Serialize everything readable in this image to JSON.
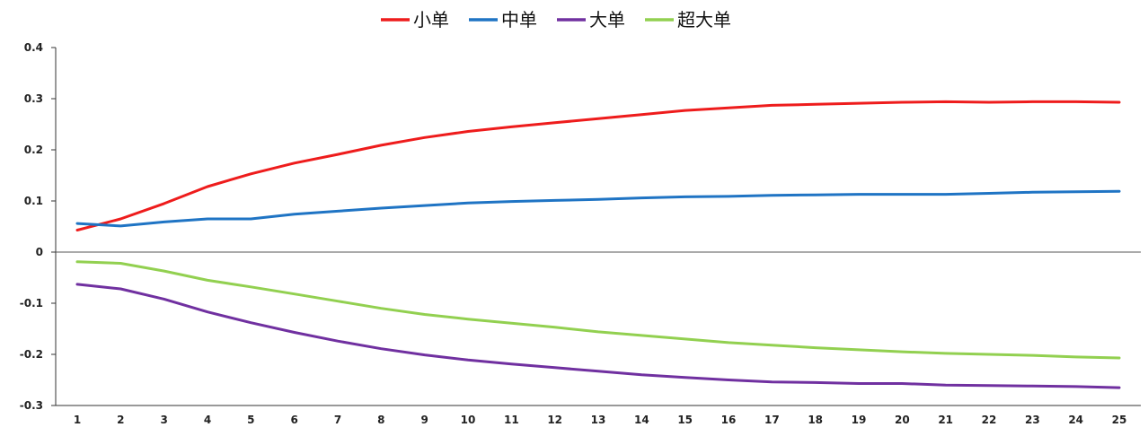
{
  "chart_data": {
    "type": "line",
    "x": [
      1,
      2,
      3,
      4,
      5,
      6,
      7,
      8,
      9,
      10,
      11,
      12,
      13,
      14,
      15,
      16,
      17,
      18,
      19,
      20,
      21,
      22,
      23,
      24,
      25
    ],
    "ylim": [
      -0.3,
      0.4
    ],
    "y_ticks": [
      0.4,
      0.3,
      0.2,
      0.1,
      0,
      -0.1,
      -0.2,
      -0.3
    ],
    "y_tick_labels": [
      "0.4",
      "0.3",
      "0.2",
      "0.1",
      "0",
      "-0.1",
      "-0.2",
      "-0.3"
    ],
    "legend_position": "top-center",
    "grid": false,
    "series": [
      {
        "name": "小单",
        "color": "#ee1c1c",
        "values": [
          0.043,
          0.065,
          0.095,
          0.128,
          0.153,
          0.174,
          0.191,
          0.209,
          0.224,
          0.236,
          0.245,
          0.253,
          0.261,
          0.269,
          0.277,
          0.282,
          0.287,
          0.289,
          0.291,
          0.293,
          0.294,
          0.293,
          0.294,
          0.294,
          0.293
        ]
      },
      {
        "name": "中单",
        "color": "#1f74c4",
        "values": [
          0.056,
          0.051,
          0.059,
          0.065,
          0.065,
          0.074,
          0.08,
          0.086,
          0.091,
          0.096,
          0.099,
          0.101,
          0.103,
          0.106,
          0.108,
          0.109,
          0.111,
          0.112,
          0.113,
          0.113,
          0.113,
          0.115,
          0.117,
          0.118,
          0.119
        ]
      },
      {
        "name": "大单",
        "color": "#7030a0",
        "values": [
          -0.063,
          -0.072,
          -0.092,
          -0.117,
          -0.138,
          -0.157,
          -0.174,
          -0.189,
          -0.201,
          -0.211,
          -0.219,
          -0.226,
          -0.233,
          -0.24,
          -0.245,
          -0.25,
          -0.254,
          -0.255,
          -0.257,
          -0.257,
          -0.26,
          -0.261,
          -0.262,
          -0.263,
          -0.265
        ]
      },
      {
        "name": "超大单",
        "color": "#92d050",
        "values": [
          -0.019,
          -0.022,
          -0.037,
          -0.055,
          -0.068,
          -0.082,
          -0.096,
          -0.11,
          -0.122,
          -0.131,
          -0.139,
          -0.147,
          -0.156,
          -0.163,
          -0.17,
          -0.177,
          -0.182,
          -0.187,
          -0.191,
          -0.195,
          -0.198,
          -0.2,
          -0.202,
          -0.205,
          -0.207
        ]
      }
    ]
  }
}
